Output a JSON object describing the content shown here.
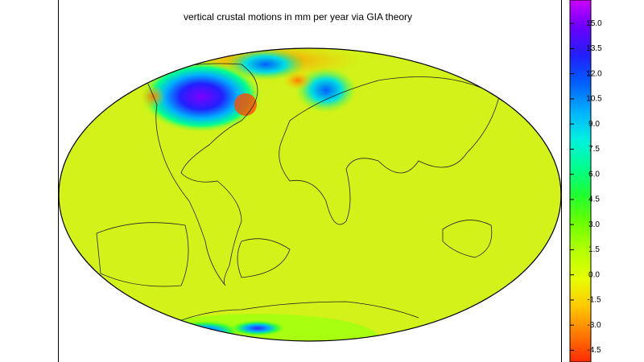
{
  "title": "vertical crustal motions in mm per year via GIA theory",
  "colorbar": {
    "range": [
      -5.2,
      16.4
    ],
    "colormap": [
      "#ff2a00",
      "#ff7a00",
      "#ffc800",
      "#e6ff00",
      "#b4ff00",
      "#6cff00",
      "#1eff30",
      "#00ff90",
      "#00f0e0",
      "#00b0ff",
      "#0060ff",
      "#2020ff",
      "#6a00ff",
      "#cc00ff"
    ],
    "ticks": [
      {
        "value": -4.5,
        "label": "-4.5"
      },
      {
        "value": -3,
        "label": "-3.0"
      },
      {
        "value": -1.5,
        "label": "-1.5"
      },
      {
        "value": 0,
        "label": "0.0"
      },
      {
        "value": 1.5,
        "label": "1.5"
      },
      {
        "value": 3,
        "label": "3.0"
      },
      {
        "value": 4.5,
        "label": "4.5"
      },
      {
        "value": 6,
        "label": "6.0"
      },
      {
        "value": 7.5,
        "label": "7.5"
      },
      {
        "value": 9,
        "label": "9.0"
      },
      {
        "value": 10.5,
        "label": "10.5"
      },
      {
        "value": 12,
        "label": "12.0"
      },
      {
        "value": 13.5,
        "label": "13.5"
      },
      {
        "value": 15,
        "label": "15.0"
      }
    ]
  }
}
